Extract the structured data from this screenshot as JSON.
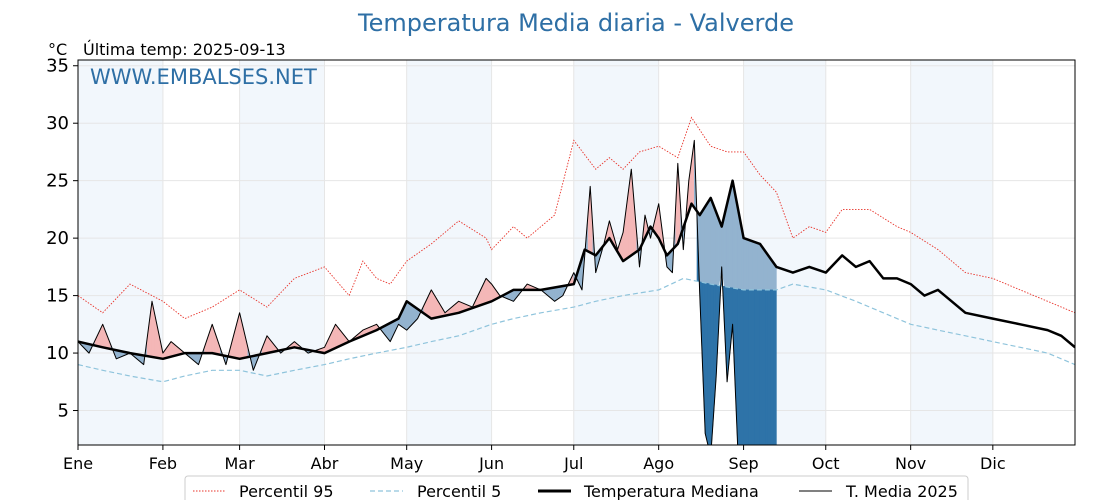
{
  "chart_data": {
    "type": "line",
    "title": "Temperatura Media diaria - Valverde",
    "unit_label": "°C",
    "subtitle": "Última temp: 2025-09-13",
    "watermark": "WWW.EMBALSES.NET",
    "ylim": [
      2,
      35.5
    ],
    "yticks": [
      5,
      10,
      15,
      20,
      25,
      30,
      35
    ],
    "months": [
      "Ene",
      "Feb",
      "Mar",
      "Abr",
      "May",
      "Jun",
      "Jul",
      "Ago",
      "Sep",
      "Oct",
      "Nov",
      "Dic"
    ],
    "grid": true,
    "legend_position": "bottom",
    "colors": {
      "title": "#2e6fa5",
      "watermark": "#2e6fa5",
      "p95": "#e8332a",
      "p5": "#8fc4dc",
      "median": "#000000",
      "t2025": "#000000",
      "above": "#f4b7b7",
      "below": "#93b3cf",
      "below_p5": "#2e73a8",
      "month_band": "#f2f7fc"
    },
    "series": [
      {
        "name": "Percentil 95",
        "style": "dotted",
        "x": [
          1,
          10,
          20,
          32,
          40,
          50,
          60,
          70,
          80,
          91,
          100,
          105,
          110,
          115,
          121,
          130,
          140,
          150,
          152,
          160,
          165,
          175,
          182,
          190,
          195,
          200,
          206,
          213,
          220,
          225,
          232,
          238,
          244,
          250,
          256,
          262,
          268,
          274,
          280,
          290,
          300,
          305,
          315,
          325,
          335,
          345,
          355,
          365
        ],
        "values": [
          15.0,
          13.5,
          16.0,
          14.5,
          13.0,
          14.0,
          15.5,
          14.0,
          16.5,
          17.5,
          15.0,
          18.0,
          16.5,
          16.0,
          18.0,
          19.5,
          21.5,
          20.0,
          19.0,
          21.0,
          20.0,
          22.0,
          28.5,
          26.0,
          27.0,
          26.0,
          27.5,
          28.0,
          27.0,
          30.5,
          28.0,
          27.5,
          27.5,
          25.5,
          24.0,
          20.0,
          21.0,
          20.5,
          22.5,
          22.5,
          21.0,
          20.5,
          19.0,
          17.0,
          16.5,
          15.5,
          14.5,
          13.5
        ]
      },
      {
        "name": "Percentil 5",
        "style": "dashed",
        "x": [
          1,
          10,
          20,
          32,
          40,
          50,
          60,
          70,
          80,
          91,
          100,
          110,
          121,
          130,
          140,
          152,
          160,
          170,
          182,
          190,
          200,
          213,
          222,
          232,
          244,
          250,
          256,
          262,
          274,
          285,
          295,
          305,
          315,
          325,
          335,
          345,
          355,
          365
        ],
        "values": [
          9.0,
          8.5,
          8.0,
          7.5,
          8.0,
          8.5,
          8.5,
          8.0,
          8.5,
          9.0,
          9.5,
          10.0,
          10.5,
          11.0,
          11.5,
          12.5,
          13.0,
          13.5,
          14.0,
          14.5,
          15.0,
          15.5,
          16.5,
          16.0,
          15.5,
          15.5,
          15.5,
          16.0,
          15.5,
          14.5,
          13.5,
          12.5,
          12.0,
          11.5,
          11.0,
          10.5,
          10.0,
          9.0
        ]
      },
      {
        "name": "Temperatura Mediana",
        "style": "solid-thick",
        "x": [
          1,
          10,
          20,
          32,
          40,
          50,
          60,
          70,
          80,
          91,
          100,
          110,
          118,
          121,
          130,
          140,
          152,
          160,
          170,
          182,
          186,
          190,
          195,
          200,
          206,
          210,
          213,
          216,
          220,
          225,
          228,
          232,
          236,
          240,
          244,
          250,
          256,
          262,
          268,
          274,
          280,
          285,
          290,
          295,
          300,
          305,
          310,
          315,
          325,
          335,
          345,
          355,
          360,
          365
        ],
        "values": [
          11.0,
          10.5,
          10.0,
          9.5,
          10.0,
          10.0,
          9.5,
          10.0,
          10.5,
          10.0,
          11.0,
          12.0,
          13.0,
          14.5,
          13.0,
          13.5,
          14.5,
          15.5,
          15.5,
          16.0,
          19.0,
          18.5,
          20.0,
          18.0,
          19.0,
          21.0,
          20.0,
          18.5,
          19.5,
          23.0,
          22.0,
          23.5,
          21.0,
          25.0,
          20.0,
          19.5,
          17.5,
          17.0,
          17.5,
          17.0,
          18.5,
          17.5,
          18.0,
          16.5,
          16.5,
          16.0,
          15.0,
          15.5,
          13.5,
          13.0,
          12.5,
          12.0,
          11.5,
          10.5
        ]
      },
      {
        "name": "T. Media 2025",
        "style": "solid-thin",
        "x": [
          1,
          5,
          10,
          15,
          20,
          25,
          28,
          32,
          35,
          40,
          45,
          50,
          55,
          60,
          65,
          70,
          75,
          80,
          85,
          91,
          95,
          100,
          105,
          110,
          115,
          118,
          121,
          125,
          130,
          135,
          140,
          145,
          150,
          152,
          155,
          160,
          165,
          170,
          175,
          178,
          182,
          185,
          188,
          190,
          193,
          195,
          198,
          200,
          203,
          206,
          208,
          210,
          213,
          216,
          218,
          220,
          222,
          224,
          226,
          228,
          230,
          232,
          234,
          236,
          238,
          240,
          242,
          244,
          246,
          248,
          250,
          252,
          256
        ],
        "values": [
          11.0,
          10.0,
          12.5,
          9.5,
          10.0,
          9.0,
          14.5,
          10.0,
          11.0,
          10.0,
          9.0,
          12.5,
          9.0,
          13.5,
          8.5,
          11.5,
          10.0,
          11.0,
          10.0,
          10.5,
          12.5,
          11.0,
          12.0,
          12.5,
          11.0,
          12.5,
          12.0,
          13.0,
          15.5,
          13.5,
          14.5,
          14.0,
          16.5,
          16.0,
          15.0,
          14.5,
          16.0,
          15.5,
          14.5,
          15.0,
          17.0,
          15.5,
          24.5,
          17.0,
          19.5,
          21.5,
          19.0,
          20.5,
          26.0,
          17.5,
          22.0,
          20.0,
          23.0,
          17.5,
          17.0,
          26.5,
          19.0,
          25.0,
          28.5,
          15.0,
          3.0,
          1.0,
          8.0,
          17.5,
          7.5,
          12.5,
          1.0,
          1.0,
          1.0,
          1.0,
          1.0,
          1.0,
          1.0
        ]
      }
    ]
  }
}
